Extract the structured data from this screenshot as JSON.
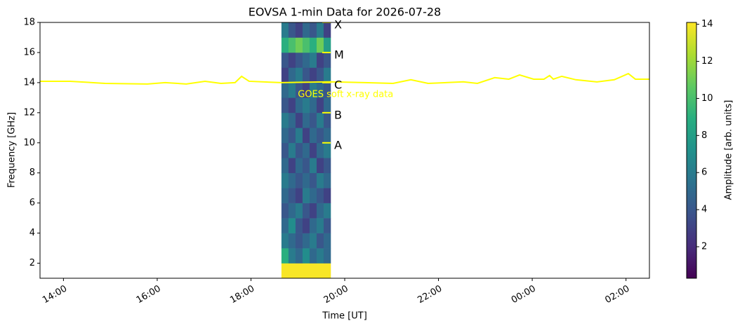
{
  "chart_data": {
    "type": "heatmap",
    "title": "EOVSA 1-min Data for 2026-07-28",
    "xlabel": "Time [UT]",
    "ylabel": "Frequency [GHz]",
    "xlim": [
      13.5,
      26.5
    ],
    "xticks": [
      {
        "value": 14,
        "label": "14:00"
      },
      {
        "value": 16,
        "label": "16:00"
      },
      {
        "value": 18,
        "label": "18:00"
      },
      {
        "value": 20,
        "label": "20:00"
      },
      {
        "value": 22,
        "label": "22:00"
      },
      {
        "value": 24,
        "label": "00:00"
      },
      {
        "value": 26,
        "label": "02:00"
      }
    ],
    "ylim": [
      1,
      18
    ],
    "yticks": [
      2,
      4,
      6,
      8,
      10,
      12,
      14,
      16,
      18
    ],
    "heatmap": {
      "colormap": "viridis",
      "x": [
        18.725,
        18.875,
        19.025,
        19.175,
        19.325,
        19.475,
        19.625
      ],
      "y": [
        1.5,
        2.5,
        3.5,
        4.5,
        5.5,
        6.5,
        7.5,
        8.5,
        9.5,
        10.5,
        11.5,
        12.5,
        13.5,
        14.5,
        15.5,
        16.5,
        17.5
      ],
      "z": [
        [
          14,
          14,
          14,
          14,
          14,
          14,
          14
        ],
        [
          9,
          6,
          5,
          7,
          5,
          6,
          5
        ],
        [
          6,
          5,
          4,
          5,
          6,
          4,
          5
        ],
        [
          5,
          7,
          4,
          3,
          5,
          6,
          4
        ],
        [
          4,
          5,
          6,
          4,
          3,
          5,
          6
        ],
        [
          5,
          4,
          3,
          6,
          5,
          4,
          3
        ],
        [
          6,
          5,
          4,
          5,
          4,
          6,
          5
        ],
        [
          5,
          3,
          5,
          4,
          6,
          3,
          4
        ],
        [
          4,
          6,
          4,
          5,
          3,
          5,
          6
        ],
        [
          5,
          4,
          6,
          3,
          5,
          4,
          5
        ],
        [
          6,
          5,
          3,
          5,
          4,
          6,
          4
        ],
        [
          4,
          3,
          5,
          6,
          5,
          3,
          5
        ],
        [
          5,
          6,
          4,
          3,
          6,
          5,
          4
        ],
        [
          3,
          5,
          6,
          4,
          3,
          4,
          6
        ],
        [
          4,
          3,
          4,
          5,
          6,
          3,
          4
        ],
        [
          9,
          10,
          11,
          10,
          9,
          11,
          8
        ],
        [
          6,
          4,
          3,
          5,
          4,
          6,
          3
        ]
      ],
      "clim": [
        0.3,
        14.1
      ],
      "cticks": [
        2,
        4,
        6,
        8,
        10,
        12,
        14
      ],
      "clabel": "Amplitude [arb. units]"
    },
    "line": {
      "color": "#ffff00",
      "x": [
        13.5,
        14.14,
        14.89,
        15.79,
        16.17,
        16.62,
        17.02,
        17.36,
        17.66,
        17.8,
        17.96,
        18.64,
        19.69,
        20.43,
        21.03,
        21.41,
        21.78,
        22.53,
        22.83,
        23.2,
        23.5,
        23.73,
        24.03,
        24.25,
        24.37,
        24.45,
        24.63,
        24.93,
        25.38,
        25.75,
        26.05,
        26.2,
        26.5
      ],
      "values": [
        14.09,
        14.09,
        13.95,
        13.91,
        14.0,
        13.91,
        14.09,
        13.95,
        14.0,
        14.42,
        14.09,
        14.0,
        14.05,
        14.0,
        13.95,
        14.19,
        13.95,
        14.05,
        13.95,
        14.33,
        14.23,
        14.51,
        14.23,
        14.23,
        14.47,
        14.23,
        14.42,
        14.19,
        14.05,
        14.19,
        14.6,
        14.23,
        14.23
      ]
    },
    "goes_classes": {
      "x": 19.7,
      "color": "#ffff00",
      "labels": [
        "X",
        "M",
        "C",
        "B",
        "A"
      ],
      "values": [
        18,
        16,
        14,
        12,
        10
      ]
    },
    "annotation": {
      "text": "GOES soft x-ray data",
      "x": 19.0,
      "y": 13.2,
      "color": "#ffff00"
    }
  }
}
